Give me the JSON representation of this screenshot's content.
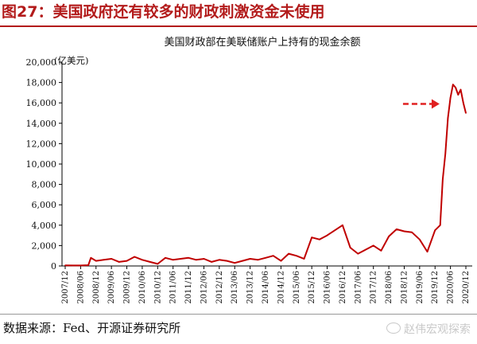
{
  "figure": {
    "title": "图27：美国政府还有较多的财政刺激资金未使用",
    "source": "数据来源：Fed、开源证券研究所",
    "watermark": "赵伟宏观探索"
  },
  "colors": {
    "title": "#b31b1b",
    "series": "#c00000",
    "arrow": "#e02020",
    "axis": "#000000"
  },
  "chart_data": {
    "type": "line",
    "title": "美国财政部在美联储账户上持有的现金余额",
    "ylabel": "(亿美元)",
    "xlabel": "",
    "ylim": [
      0,
      20000
    ],
    "yticks": [
      0,
      2000,
      4000,
      6000,
      8000,
      10000,
      12000,
      14000,
      16000,
      18000,
      20000
    ],
    "ytick_labels": [
      "0",
      "2,000",
      "4,000",
      "6,000",
      "8,000",
      "10,000",
      "12,000",
      "14,000",
      "16,000",
      "18,000",
      "20,000"
    ],
    "xtick_labels": [
      "2007/12",
      "2008/06",
      "2008/12",
      "2009/06",
      "2009/12",
      "2010/06",
      "2010/12",
      "2011/06",
      "2011/12",
      "2012/06",
      "2012/12",
      "2013/06",
      "2013/12",
      "2014/06",
      "2014/12",
      "2015/06",
      "2015/12",
      "2016/06",
      "2016/12",
      "2017/06",
      "2017/12",
      "2018/06",
      "2018/12",
      "2019/06",
      "2019/12",
      "2020/06",
      "2020/12"
    ],
    "grid": false,
    "legend": "none",
    "annotation": "red dashed arrow pointing to the 2020 peak",
    "series": [
      {
        "x": [
          "2007/12",
          "2008/03",
          "2008/06",
          "2008/09",
          "2008/10",
          "2008/12",
          "2009/03",
          "2009/06",
          "2009/09",
          "2009/12",
          "2010/03",
          "2010/06",
          "2010/09",
          "2010/12",
          "2011/03",
          "2011/06",
          "2011/09",
          "2011/12",
          "2012/03",
          "2012/06",
          "2012/09",
          "2012/12",
          "2013/03",
          "2013/06",
          "2013/09",
          "2013/12",
          "2014/03",
          "2014/06",
          "2014/09",
          "2014/12",
          "2015/03",
          "2015/06",
          "2015/09",
          "2015/12",
          "2016/03",
          "2016/06",
          "2016/09",
          "2016/12",
          "2017/03",
          "2017/06",
          "2017/09",
          "2017/12",
          "2018/03",
          "2018/06",
          "2018/09",
          "2018/12",
          "2019/03",
          "2019/06",
          "2019/09",
          "2019/12",
          "2020/02",
          "2020/03",
          "2020/04",
          "2020/05",
          "2020/06",
          "2020/07",
          "2020/08",
          "2020/09",
          "2020/10",
          "2020/11",
          "2020/12"
        ],
        "values": [
          60,
          50,
          50,
          80,
          800,
          500,
          600,
          700,
          400,
          500,
          900,
          600,
          400,
          200,
          800,
          600,
          700,
          800,
          600,
          700,
          400,
          600,
          500,
          300,
          500,
          700,
          600,
          800,
          1000,
          500,
          1200,
          1000,
          700,
          2800,
          2600,
          3000,
          3500,
          4000,
          1800,
          1200,
          1600,
          2000,
          1500,
          2900,
          3600,
          3400,
          3300,
          2600,
          1400,
          3500,
          4000,
          8500,
          11000,
          14500,
          16500,
          17800,
          17500,
          16800,
          17300,
          16000,
          15000
        ]
      }
    ]
  }
}
